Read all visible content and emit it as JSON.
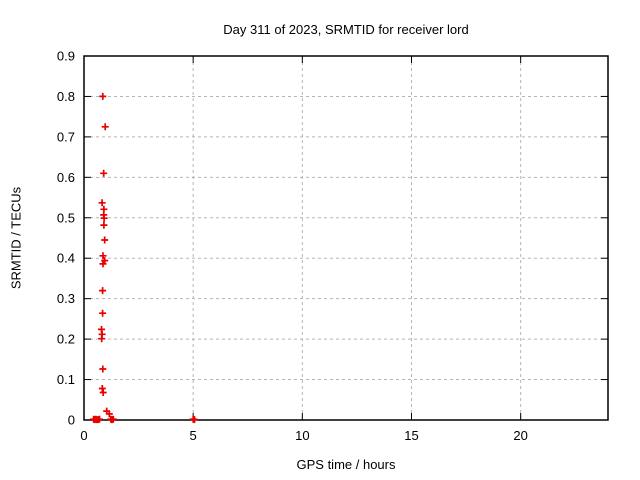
{
  "chart_data": {
    "type": "scatter",
    "title": "Day 311 of 2023, SRMTID for receiver lord",
    "xlabel": "GPS time / hours",
    "ylabel": "SRMTID / TECUs",
    "xlim": [
      0,
      24
    ],
    "ylim": [
      0,
      0.9
    ],
    "grid": true,
    "legend": "none",
    "marker": "plus",
    "marker_color": "#e60000",
    "grid_color": "#b5b5b5",
    "border_color": "#000000",
    "background_color": "#ffffff",
    "x_ticks": [
      {
        "value": 0,
        "label": "0"
      },
      {
        "value": 5,
        "label": "5"
      },
      {
        "value": 10,
        "label": "10"
      },
      {
        "value": 15,
        "label": "15"
      },
      {
        "value": 20,
        "label": "20"
      }
    ],
    "y_ticks": [
      {
        "value": 0.0,
        "label": "0"
      },
      {
        "value": 0.1,
        "label": "0.1"
      },
      {
        "value": 0.2,
        "label": "0.2"
      },
      {
        "value": 0.3,
        "label": "0.3"
      },
      {
        "value": 0.4,
        "label": "0.4"
      },
      {
        "value": 0.5,
        "label": "0.5"
      },
      {
        "value": 0.6,
        "label": "0.6"
      },
      {
        "value": 0.7,
        "label": "0.7"
      },
      {
        "value": 0.8,
        "label": "0.8"
      },
      {
        "value": 0.9,
        "label": "0.9"
      }
    ],
    "series": [
      {
        "name": "SRMTID",
        "points": [
          [
            0.86,
            0.8
          ],
          [
            0.97,
            0.725
          ],
          [
            0.9,
            0.61
          ],
          [
            0.83,
            0.537
          ],
          [
            0.91,
            0.521
          ],
          [
            0.9,
            0.507
          ],
          [
            0.92,
            0.499
          ],
          [
            0.91,
            0.482
          ],
          [
            0.95,
            0.445
          ],
          [
            0.87,
            0.406
          ],
          [
            0.95,
            0.394
          ],
          [
            0.87,
            0.386
          ],
          [
            0.85,
            0.32
          ],
          [
            0.85,
            0.264
          ],
          [
            0.8,
            0.224
          ],
          [
            0.83,
            0.212
          ],
          [
            0.81,
            0.201
          ],
          [
            0.86,
            0.126
          ],
          [
            0.84,
            0.078
          ],
          [
            0.88,
            0.068
          ],
          [
            1.04,
            0.022
          ],
          [
            1.16,
            0.015
          ],
          [
            0.44,
            0.002
          ],
          [
            0.49,
            0.001
          ],
          [
            0.54,
            0.002
          ],
          [
            0.59,
            0.001
          ],
          [
            0.64,
            0.001
          ],
          [
            0.71,
            0.002
          ],
          [
            1.23,
            0.002
          ],
          [
            1.28,
            0.001
          ],
          [
            1.34,
            0.002
          ],
          [
            5.0,
            0.002
          ],
          [
            5.06,
            0.001
          ]
        ]
      }
    ]
  }
}
